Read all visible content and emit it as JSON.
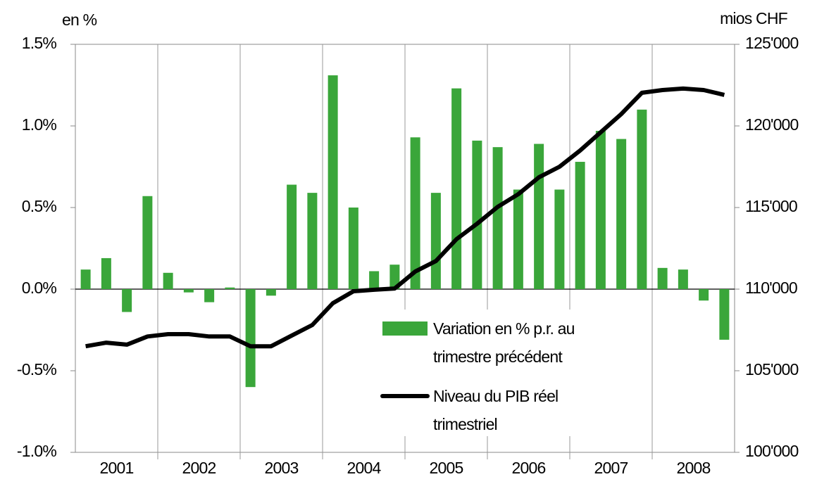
{
  "chart_data": {
    "type": "bar",
    "y_label": "en %",
    "y2_label": "mios CHF",
    "categories": [
      "2001",
      "2002",
      "2003",
      "2004",
      "2005",
      "2006",
      "2007",
      "2008"
    ],
    "series": [
      {
        "name": "Variation en % p.r. au trimestre précédent",
        "type": "bar",
        "color": "#3aa63a",
        "values": [
          [
            0.12,
            0.19,
            -0.14,
            0.57
          ],
          [
            0.1,
            -0.02,
            -0.08,
            0.01
          ],
          [
            -0.6,
            -0.04,
            0.64,
            0.59
          ],
          [
            1.31,
            0.5,
            0.11,
            0.15
          ],
          [
            0.93,
            0.59,
            1.23,
            0.91
          ],
          [
            0.87,
            0.61,
            0.89,
            0.61
          ],
          [
            0.78,
            0.97,
            0.92,
            1.1
          ],
          [
            0.13,
            0.12,
            -0.07,
            -0.31
          ]
        ]
      },
      {
        "name": "Niveau du PIB réel trimestriel",
        "type": "line",
        "axis": "y2",
        "color": "#000000",
        "values": [
          [
            106500,
            106720,
            106600,
            107100
          ],
          [
            107240,
            107240,
            107100,
            107100
          ],
          [
            106500,
            106500,
            107150,
            107800
          ],
          [
            109140,
            109870,
            109960,
            110040
          ],
          [
            111080,
            111720,
            113060,
            114010
          ],
          [
            115040,
            115820,
            116850,
            117500
          ],
          [
            118490,
            119610,
            120730,
            122030
          ],
          [
            122200,
            122290,
            122200,
            121900
          ]
        ]
      }
    ],
    "ylim": [
      -1.0,
      1.5
    ],
    "yticks": [
      {
        "value": 1.5,
        "label": "1.5%"
      },
      {
        "value": 1.0,
        "label": "1.0%"
      },
      {
        "value": 0.5,
        "label": "0.5%"
      },
      {
        "value": 0.0,
        "label": "0.0%"
      },
      {
        "value": -0.5,
        "label": "-0.5%"
      },
      {
        "value": -1.0,
        "label": "-1.0%"
      }
    ],
    "y2lim": [
      100000,
      125000
    ],
    "y2ticks": [
      {
        "value": 125000,
        "label": "125'000"
      },
      {
        "value": 120000,
        "label": "120'000"
      },
      {
        "value": 115000,
        "label": "115'000"
      },
      {
        "value": 110000,
        "label": "110'000"
      },
      {
        "value": 105000,
        "label": "105'000"
      },
      {
        "value": 100000,
        "label": "100'000"
      }
    ],
    "legend": "lower-center"
  }
}
